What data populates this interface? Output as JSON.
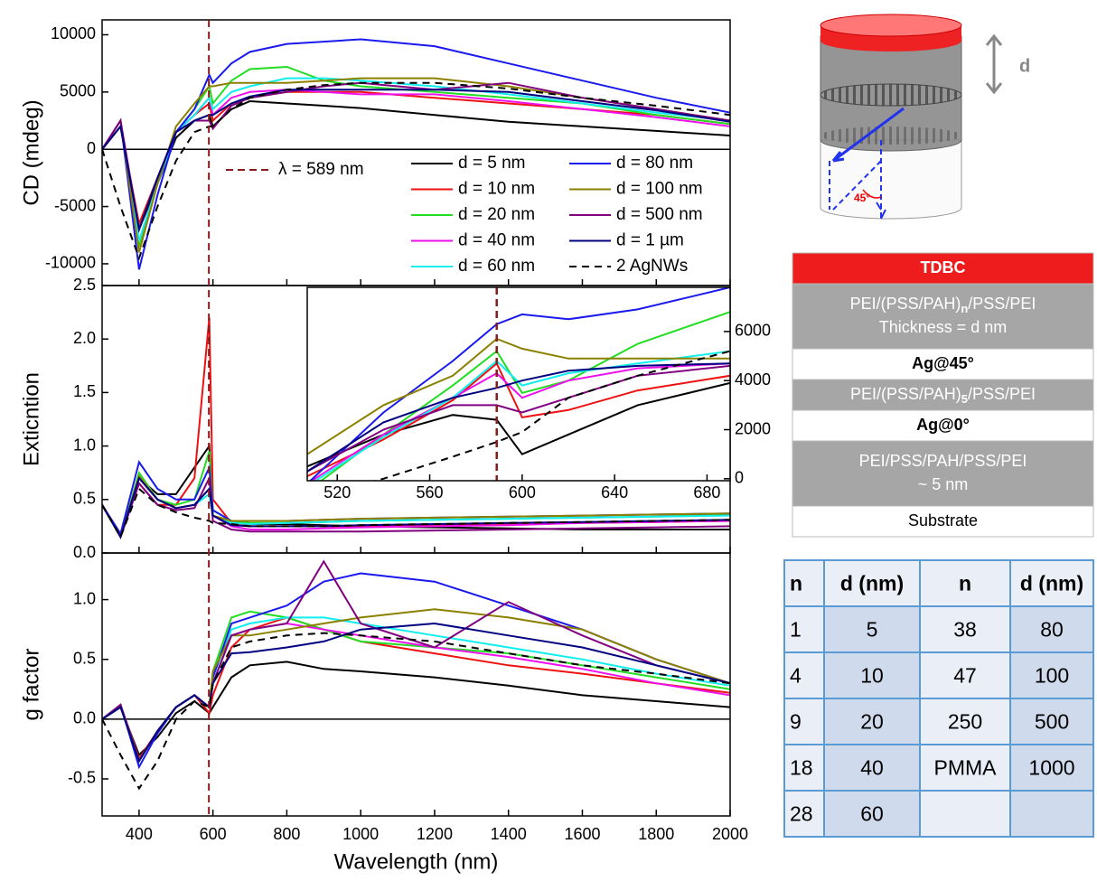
{
  "chart_data": [
    {
      "type": "line",
      "ylabel": "CD (mdeg)",
      "xlim": [
        300,
        2000
      ],
      "ylim": [
        -11900,
        11300
      ],
      "yticks": [
        -10000,
        -5000,
        0,
        5000,
        10000
      ],
      "zero_line": true,
      "reference_line": {
        "x": 589,
        "label": "λ = 589 nm",
        "color": "#8b1a1a"
      },
      "x": [
        300,
        350,
        400,
        450,
        500,
        550,
        590,
        600,
        650,
        700,
        800,
        900,
        1000,
        1200,
        1400,
        1600,
        1800,
        2000
      ],
      "series": [
        {
          "name": "d = 5 nm",
          "color": "#000000",
          "values": [
            0,
            2000,
            -7000,
            -3000,
            1000,
            2500,
            3000,
            2000,
            3500,
            4200,
            4000,
            3800,
            3600,
            3000,
            2400,
            2000,
            1600,
            1200
          ]
        },
        {
          "name": "d = 10 nm",
          "color": "#ee1111",
          "values": [
            0,
            2000,
            -6500,
            -2500,
            1500,
            3000,
            4000,
            2500,
            4000,
            4500,
            5000,
            5000,
            5000,
            4500,
            4000,
            3500,
            3000,
            2200
          ]
        },
        {
          "name": "d = 20 nm",
          "color": "#22dd22",
          "values": [
            0,
            2500,
            -8500,
            -3000,
            1500,
            3500,
            5500,
            4000,
            6000,
            7000,
            7200,
            6000,
            5500,
            5000,
            4500,
            4000,
            3000,
            2200
          ]
        },
        {
          "name": "d = 40 nm",
          "color": "#ee11ee",
          "values": [
            0,
            2500,
            -8000,
            -3000,
            1500,
            3000,
            4500,
            3000,
            4500,
            5000,
            5200,
            5000,
            4800,
            4800,
            4200,
            3500,
            2800,
            2000
          ]
        },
        {
          "name": "d = 60 nm",
          "color": "#11eeee",
          "values": [
            0,
            2500,
            -8000,
            -3000,
            1500,
            3000,
            4500,
            3500,
            5000,
            5500,
            6200,
            6200,
            6000,
            5500,
            4800,
            4000,
            3200,
            2500
          ]
        },
        {
          "name": "d = 80 nm",
          "color": "#1a1aee",
          "values": [
            0,
            2500,
            -10500,
            -4000,
            1500,
            3500,
            6500,
            5800,
            7500,
            8500,
            9200,
            9400,
            9600,
            9000,
            7500,
            6000,
            4500,
            3200
          ]
        },
        {
          "name": "d = 100 nm",
          "color": "#8b8000",
          "values": [
            0,
            2500,
            -9000,
            -3000,
            2000,
            4000,
            5500,
            5500,
            5800,
            5800,
            5800,
            6000,
            6200,
            6200,
            5500,
            4500,
            3500,
            2500
          ]
        },
        {
          "name": "d = 500 nm",
          "color": "#800080",
          "values": [
            0,
            2500,
            -7000,
            -2500,
            1500,
            2500,
            2500,
            1800,
            3800,
            4500,
            5000,
            5500,
            5800,
            5200,
            5800,
            4500,
            3500,
            2500
          ]
        },
        {
          "name": "d = 1 µm",
          "color": "#000080",
          "values": [
            0,
            2000,
            -7000,
            -2500,
            1500,
            2500,
            3000,
            3000,
            4000,
            4600,
            5200,
            5200,
            5200,
            5200,
            5000,
            4200,
            3400,
            2400
          ]
        },
        {
          "name": "2 AgNWs",
          "color": "#000000",
          "dashed": true,
          "values": [
            0,
            -5000,
            -9500,
            -5000,
            -1000,
            1500,
            2000,
            2000,
            3500,
            4500,
            5200,
            5600,
            5800,
            5800,
            5300,
            4500,
            3800,
            3000
          ]
        }
      ]
    },
    {
      "type": "line",
      "ylabel": "Exticntion",
      "xlim": [
        300,
        2000
      ],
      "ylim": [
        0,
        2.5
      ],
      "yticks": [
        {
          "value": 0,
          "label": "0.0"
        },
        0.5,
        {
          "value": 1,
          "label": "1.0"
        },
        1.5,
        {
          "value": 2,
          "label": "2.0"
        },
        2.5
      ],
      "x": [
        300,
        350,
        400,
        450,
        500,
        550,
        590,
        600,
        650,
        700,
        800,
        900,
        1000,
        1200,
        1400,
        1600,
        1800,
        2000
      ],
      "series": [
        {
          "color": "#000000",
          "values": [
            0.45,
            0.15,
            0.7,
            0.55,
            0.55,
            0.8,
            1.0,
            0.35,
            0.28,
            0.27,
            0.27,
            0.26,
            0.25,
            0.24,
            0.23,
            0.22,
            0.22,
            0.22
          ]
        },
        {
          "color": "#ee1111",
          "values": [
            0.45,
            0.15,
            0.65,
            0.45,
            0.45,
            0.7,
            2.2,
            0.5,
            0.28,
            0.25,
            0.25,
            0.25,
            0.25,
            0.26,
            0.27,
            0.28,
            0.29,
            0.3
          ]
        },
        {
          "color": "#22dd22",
          "values": [
            0.45,
            0.15,
            0.75,
            0.5,
            0.45,
            0.5,
            0.95,
            0.4,
            0.3,
            0.28,
            0.28,
            0.29,
            0.3,
            0.31,
            0.32,
            0.33,
            0.34,
            0.36
          ]
        },
        {
          "color": "#ee11ee",
          "values": [
            0.45,
            0.15,
            0.7,
            0.5,
            0.42,
            0.45,
            0.6,
            0.35,
            0.25,
            0.22,
            0.22,
            0.23,
            0.24,
            0.25,
            0.26,
            0.28,
            0.29,
            0.3
          ]
        },
        {
          "color": "#11eeee",
          "values": [
            0.45,
            0.15,
            0.72,
            0.5,
            0.42,
            0.45,
            0.55,
            0.35,
            0.28,
            0.27,
            0.28,
            0.29,
            0.3,
            0.31,
            0.32,
            0.33,
            0.34,
            0.35
          ]
        },
        {
          "color": "#1a1aee",
          "values": [
            0.45,
            0.18,
            0.85,
            0.6,
            0.5,
            0.5,
            0.8,
            0.4,
            0.3,
            0.3,
            0.3,
            0.31,
            0.32,
            0.33,
            0.34,
            0.35,
            0.36,
            0.37
          ]
        },
        {
          "color": "#8b8000",
          "values": [
            0.45,
            0.15,
            0.72,
            0.5,
            0.42,
            0.45,
            0.6,
            0.35,
            0.3,
            0.3,
            0.3,
            0.31,
            0.32,
            0.33,
            0.34,
            0.35,
            0.36,
            0.37
          ]
        },
        {
          "color": "#800080",
          "values": [
            0.45,
            0.15,
            0.65,
            0.45,
            0.4,
            0.42,
            0.7,
            0.3,
            0.22,
            0.2,
            0.2,
            0.2,
            0.2,
            0.21,
            0.22,
            0.23,
            0.24,
            0.25
          ]
        },
        {
          "color": "#000080",
          "values": [
            0.45,
            0.15,
            0.7,
            0.5,
            0.42,
            0.45,
            0.6,
            0.35,
            0.26,
            0.25,
            0.25,
            0.25,
            0.26,
            0.27,
            0.28,
            0.29,
            0.3,
            0.31
          ]
        },
        {
          "color": "#000000",
          "dashed": true,
          "values": [
            0.45,
            0.15,
            0.6,
            0.45,
            0.38,
            0.33,
            0.3,
            0.28,
            0.27,
            0.25,
            0.25,
            0.25,
            0.26,
            0.27,
            0.28,
            0.29,
            0.3,
            0.31
          ]
        }
      ]
    },
    {
      "type": "line",
      "ylabel": "g factor",
      "xlabel": "Wavelength (nm)",
      "xlim": [
        300,
        2000
      ],
      "ylim": [
        -0.81,
        1.39
      ],
      "zero_line": true,
      "xticks": [
        400,
        600,
        800,
        1000,
        1200,
        1400,
        1600,
        1800,
        2000
      ],
      "yticks": [
        -0.5,
        {
          "value": 0,
          "label": "0.0"
        },
        0.5,
        {
          "value": 1,
          "label": "1.0"
        }
      ],
      "x": [
        300,
        350,
        400,
        450,
        500,
        550,
        590,
        600,
        650,
        700,
        800,
        900,
        1000,
        1200,
        1400,
        1600,
        1800,
        2000
      ],
      "series": [
        {
          "color": "#000000",
          "values": [
            0,
            0.1,
            -0.3,
            -0.15,
            0.05,
            0.15,
            0.05,
            0.1,
            0.35,
            0.45,
            0.48,
            0.42,
            0.4,
            0.35,
            0.28,
            0.2,
            0.15,
            0.1
          ]
        },
        {
          "color": "#ee1111",
          "values": [
            0,
            0.12,
            -0.33,
            -0.1,
            0.1,
            0.2,
            0.05,
            0.2,
            0.6,
            0.75,
            0.85,
            0.75,
            0.65,
            0.55,
            0.45,
            0.38,
            0.3,
            0.22
          ]
        },
        {
          "color": "#22dd22",
          "values": [
            0,
            0.12,
            -0.35,
            -0.1,
            0.1,
            0.2,
            0.1,
            0.4,
            0.85,
            0.9,
            0.85,
            0.75,
            0.65,
            0.6,
            0.55,
            0.45,
            0.35,
            0.25
          ]
        },
        {
          "color": "#ee11ee",
          "values": [
            0,
            0.12,
            -0.35,
            -0.1,
            0.1,
            0.2,
            0.1,
            0.3,
            0.7,
            0.75,
            0.8,
            0.75,
            0.7,
            0.6,
            0.52,
            0.42,
            0.3,
            0.2
          ]
        },
        {
          "color": "#11eeee",
          "values": [
            0,
            0.12,
            -0.35,
            -0.1,
            0.1,
            0.2,
            0.1,
            0.35,
            0.75,
            0.8,
            0.85,
            0.85,
            0.8,
            0.7,
            0.6,
            0.5,
            0.38,
            0.28
          ]
        },
        {
          "color": "#1a1aee",
          "values": [
            0,
            0.12,
            -0.4,
            -0.12,
            0.1,
            0.2,
            0.1,
            0.35,
            0.8,
            0.85,
            0.95,
            1.15,
            1.22,
            1.15,
            0.95,
            0.75,
            0.5,
            0.3
          ]
        },
        {
          "color": "#8b8000",
          "values": [
            0,
            0.12,
            -0.35,
            -0.1,
            0.1,
            0.2,
            0.1,
            0.4,
            0.7,
            0.7,
            0.75,
            0.8,
            0.85,
            0.92,
            0.85,
            0.75,
            0.5,
            0.3
          ]
        },
        {
          "color": "#800080",
          "values": [
            0,
            0.12,
            -0.35,
            -0.1,
            0.1,
            0.2,
            0.1,
            0.3,
            0.7,
            0.75,
            0.8,
            1.32,
            0.8,
            0.6,
            0.98,
            0.7,
            0.45,
            0.3
          ]
        },
        {
          "color": "#000080",
          "values": [
            0,
            0.1,
            -0.35,
            -0.1,
            0.1,
            0.2,
            0.1,
            0.3,
            0.55,
            0.56,
            0.6,
            0.65,
            0.75,
            0.8,
            0.7,
            0.6,
            0.45,
            0.3
          ]
        },
        {
          "color": "#000000",
          "dashed": true,
          "values": [
            0,
            -0.3,
            -0.58,
            -0.35,
            0,
            0.15,
            0.1,
            0.3,
            0.6,
            0.65,
            0.7,
            0.72,
            0.7,
            0.65,
            0.55,
            0.45,
            0.38,
            0.3
          ]
        }
      ]
    },
    {
      "type": "line",
      "inset": true,
      "yaxis_side": "right",
      "xlim": [
        507,
        690
      ],
      "ylim": [
        -80,
        7800
      ],
      "reference_x": 589,
      "xticks": [
        520,
        560,
        600,
        640,
        680
      ],
      "yticks": [
        0,
        2000,
        4000,
        6000
      ],
      "x": [
        507,
        540,
        570,
        589,
        600,
        620,
        650,
        690
      ],
      "series": [
        {
          "color": "#000000",
          "values": [
            500,
            1800,
            2600,
            2400,
            1000,
            1800,
            3000,
            3900
          ]
        },
        {
          "color": "#ee1111",
          "values": [
            100,
            1600,
            3200,
            4700,
            2500,
            2800,
            3600,
            4200
          ]
        },
        {
          "color": "#22dd22",
          "values": [
            -500,
            1800,
            3800,
            5200,
            3500,
            4000,
            5500,
            6800
          ]
        },
        {
          "color": "#ee11ee",
          "values": [
            -200,
            1800,
            3300,
            4300,
            3300,
            4000,
            4500,
            4700
          ]
        },
        {
          "color": "#11eeee",
          "values": [
            -300,
            1700,
            3300,
            4800,
            3800,
            4300,
            4700,
            5200
          ]
        },
        {
          "color": "#1a1aee",
          "values": [
            -200,
            2700,
            4800,
            6300,
            6700,
            6500,
            6900,
            7800
          ]
        },
        {
          "color": "#8b8000",
          "values": [
            1000,
            3000,
            4200,
            5700,
            5300,
            4900,
            4900,
            4900
          ]
        },
        {
          "color": "#800080",
          "values": [
            300,
            2000,
            3000,
            3000,
            2700,
            3300,
            4200,
            4600
          ]
        },
        {
          "color": "#000080",
          "values": [
            300,
            2300,
            3300,
            3700,
            4000,
            4400,
            4600,
            4700
          ]
        },
        {
          "color": "#000000",
          "dashed": true,
          "values": [
            -800,
            0,
            900,
            1500,
            1900,
            3300,
            4200,
            5200
          ]
        }
      ]
    }
  ],
  "schematic": {
    "thickness_label": "d",
    "angle_label": "45°"
  },
  "layer_stack": [
    {
      "fill": "#ee1c1c",
      "text_color": "#ffffff",
      "bold": true,
      "lines": [
        [
          "TDBC"
        ]
      ]
    },
    {
      "fill": "#a6a6a6",
      "text_color": "#ffffff",
      "lines": [
        [
          "PEI/(PSS/PAH)",
          "n",
          "/PSS/PEI"
        ],
        [
          "Thickness = d nm"
        ]
      ]
    },
    {
      "fill": "#ffffff",
      "text_color": "#000000",
      "bold": true,
      "lines": [
        [
          "Ag@45°"
        ]
      ]
    },
    {
      "fill": "#a6a6a6",
      "text_color": "#ffffff",
      "lines": [
        [
          "PEI/(PSS/PAH)",
          "5",
          "/PSS/PEI"
        ]
      ]
    },
    {
      "fill": "#ffffff",
      "text_color": "#000000",
      "bold": true,
      "lines": [
        [
          "Ag@0°"
        ]
      ]
    },
    {
      "fill": "#a6a6a6",
      "text_color": "#ffffff",
      "lines": [
        [
          "PEI/PSS/PAH/PSS/PEI"
        ],
        [
          "~ 5 nm"
        ]
      ]
    },
    {
      "fill": "#ffffff",
      "text_color": "#000000",
      "lines": [
        [
          "Substrate"
        ]
      ]
    }
  ],
  "table": {
    "header": [
      "n",
      "d (nm)",
      "n",
      "d (nm)"
    ],
    "rows": [
      [
        "1",
        "5",
        "38",
        "80"
      ],
      [
        "4",
        "10",
        "47",
        "100"
      ],
      [
        "9",
        "20",
        "250",
        "500"
      ],
      [
        "18",
        "40",
        "PMMA",
        "1000"
      ],
      [
        "28",
        "60",
        null,
        null
      ]
    ]
  }
}
